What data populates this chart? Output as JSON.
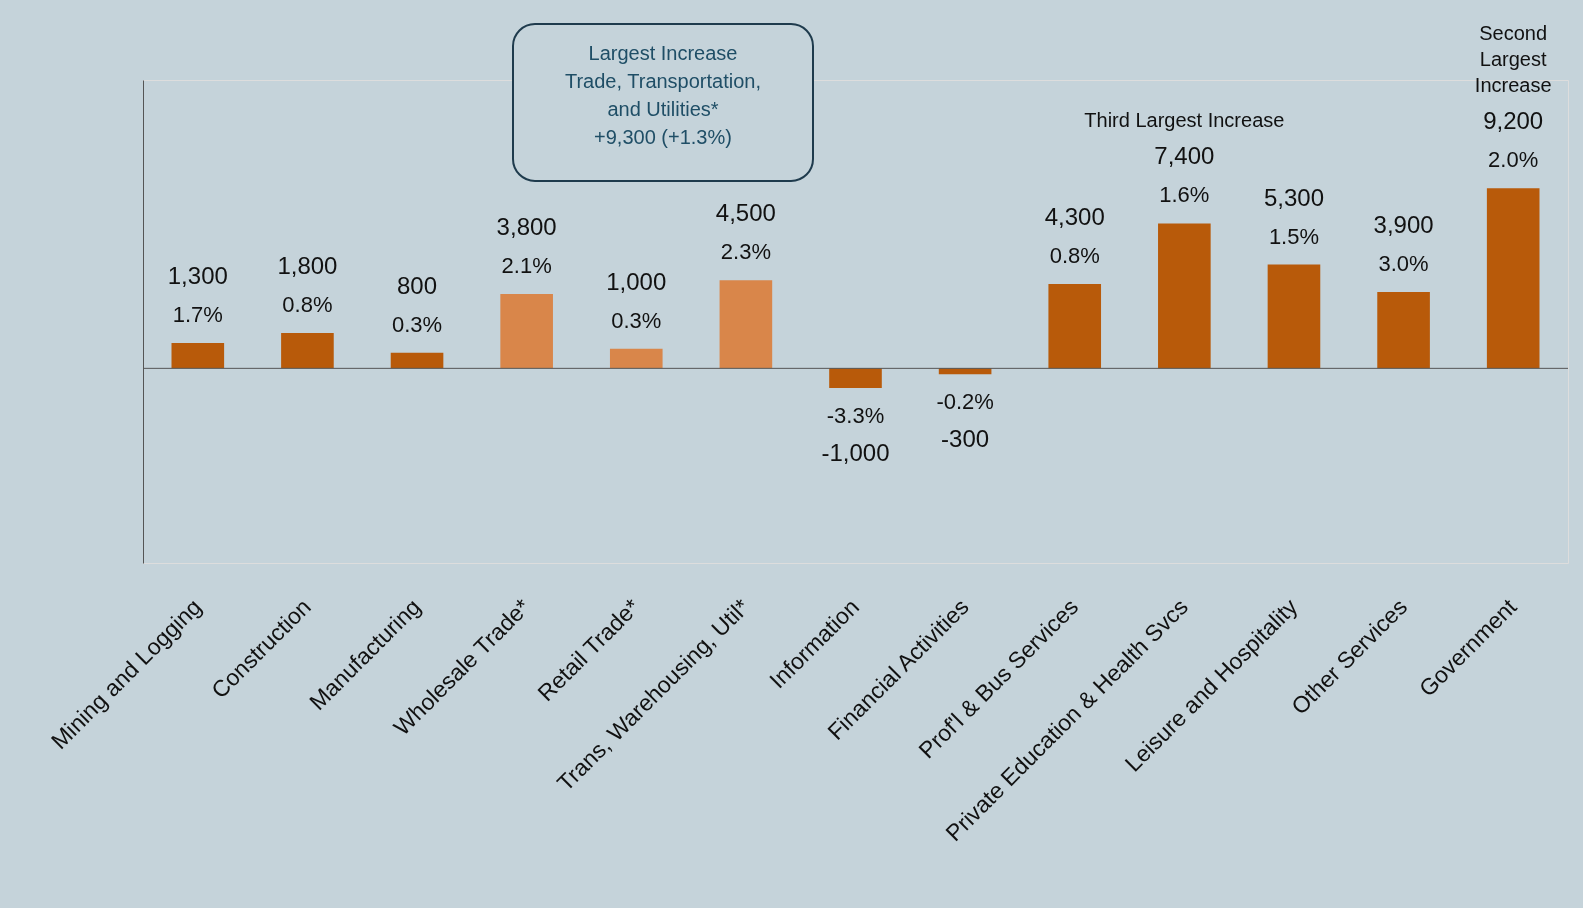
{
  "chart_data": {
    "type": "bar",
    "categories": [
      "Mining and Logging",
      "Construction",
      "Manufacturing",
      "Wholesale Trade*",
      "Retail Trade*",
      "Trans, Warehousing, Util*",
      "Information",
      "Financial Activities",
      "Prof'l & Bus Services",
      "Private Education & Health Svcs",
      "Leisure and Hospitality",
      "Other Services",
      "Government"
    ],
    "values": [
      1300,
      1800,
      800,
      3800,
      1000,
      4500,
      -1000,
      -300,
      4300,
      7400,
      5300,
      3900,
      9200
    ],
    "value_labels": [
      "1,300",
      "1,800",
      "800",
      "3,800",
      "1,000",
      "4,500",
      "-1,000",
      "-300",
      "4,300",
      "7,400",
      "5,300",
      "3,900",
      "9,200"
    ],
    "colors": [
      "#b85a0a",
      "#b85a0a",
      "#b85a0a",
      "#d9864a",
      "#d9864a",
      "#d9864a",
      "#b85a0a",
      "#b85a0a",
      "#b85a0a",
      "#b85a0a",
      "#b85a0a",
      "#b85a0a",
      "#b85a0a"
    ],
    "annotations": [
      "1.7%",
      "0.8%",
      "0.3%",
      "2.1%",
      "0.3%",
      "2.3%",
      "-3.3%",
      "-0.2%",
      "0.8%",
      "1.6%",
      "1.5%",
      "3.0%",
      "2.0%",
      "Third Largest Increase",
      "Second\nLargest\nIncrease",
      "Largest Increase\nTrade, Transportation,\nand Utilities*\n+9,300 (+1.3%)"
    ]
  }
}
